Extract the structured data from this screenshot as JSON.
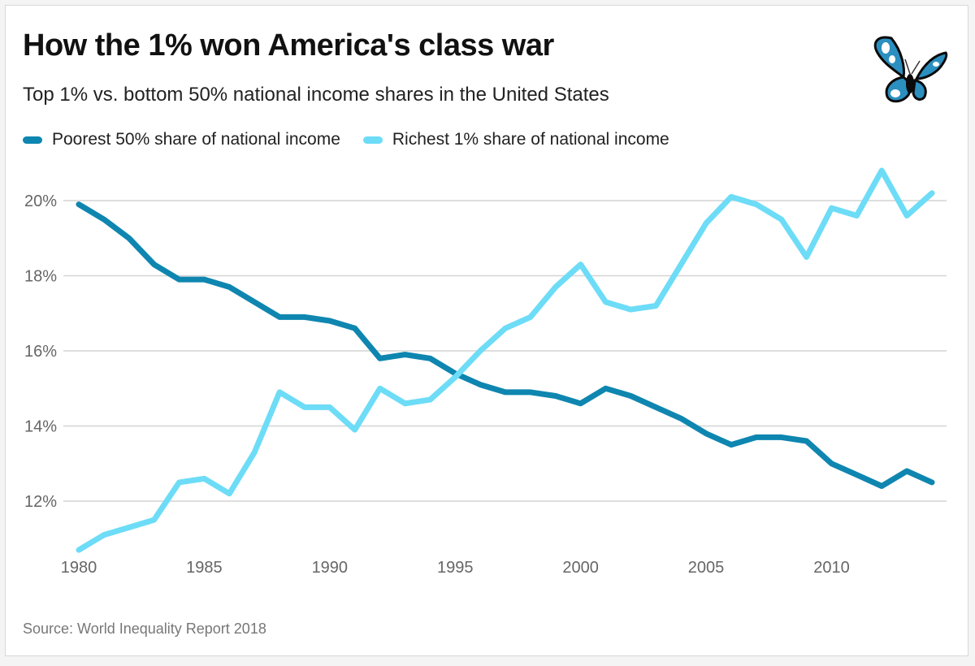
{
  "header": {
    "title": "How the 1% won America's class war",
    "subtitle": "Top 1% vs. bottom 50% national income shares in the United States",
    "logo_icon": "butterfly-icon"
  },
  "legend": [
    {
      "label": "Poorest 50% share of national income",
      "color": "#0e86b0"
    },
    {
      "label": "Richest 1% share of national income",
      "color": "#6ddcf7"
    }
  ],
  "footer": {
    "source": "Source: World Inequality Report 2018"
  },
  "chart_data": {
    "type": "line",
    "title": "How the 1% won America's class war",
    "subtitle": "Top 1% vs. bottom 50% national income shares in the United States",
    "xlabel": "",
    "ylabel": "",
    "x": [
      1980,
      1981,
      1982,
      1983,
      1984,
      1985,
      1986,
      1987,
      1988,
      1989,
      1990,
      1991,
      1992,
      1993,
      1994,
      1995,
      1996,
      1997,
      1998,
      1999,
      2000,
      2001,
      2002,
      2003,
      2004,
      2005,
      2006,
      2007,
      2008,
      2009,
      2010,
      2011,
      2012,
      2013,
      2014
    ],
    "series": [
      {
        "name": "Poorest 50% share of national income",
        "color": "#0e86b0",
        "values": [
          19.9,
          19.5,
          19.0,
          18.3,
          17.9,
          17.9,
          17.7,
          17.3,
          16.9,
          16.9,
          16.8,
          16.6,
          15.8,
          15.9,
          15.8,
          15.4,
          15.1,
          14.9,
          14.9,
          14.8,
          14.6,
          15.0,
          14.8,
          14.5,
          14.2,
          13.8,
          13.5,
          13.7,
          13.7,
          13.6,
          13.0,
          12.7,
          12.4,
          12.8,
          12.5
        ]
      },
      {
        "name": "Richest 1% share of national income",
        "color": "#6ddcf7",
        "values": [
          10.7,
          11.1,
          11.3,
          11.5,
          12.5,
          12.6,
          12.2,
          13.3,
          14.9,
          14.5,
          14.5,
          13.9,
          15.0,
          14.6,
          14.7,
          15.3,
          16.0,
          16.6,
          16.9,
          17.7,
          18.3,
          17.3,
          17.1,
          17.2,
          18.3,
          19.4,
          20.1,
          19.9,
          19.5,
          18.5,
          19.8,
          19.6,
          20.8,
          19.6,
          20.2
        ]
      }
    ],
    "x_ticks": [
      "1980",
      "1985",
      "1990",
      "1995",
      "2000",
      "2005",
      "2010"
    ],
    "x_tick_values": [
      1980,
      1985,
      1990,
      1995,
      2000,
      2005,
      2010
    ],
    "y_ticks": [
      "12%",
      "14%",
      "16%",
      "18%",
      "20%"
    ],
    "y_tick_values": [
      12,
      14,
      16,
      18,
      20
    ],
    "xlim": [
      1980,
      2014
    ],
    "ylim": [
      10.7,
      20.8
    ],
    "grid": true,
    "legend_position": "top-left",
    "source": "Source: World Inequality Report 2018"
  }
}
